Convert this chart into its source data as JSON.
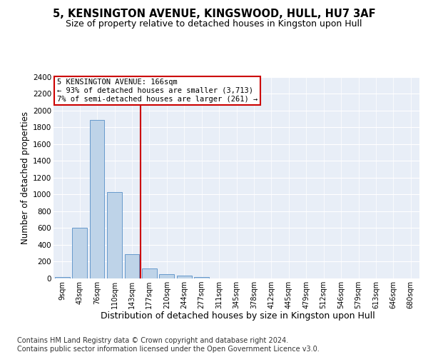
{
  "title": "5, KENSINGTON AVENUE, KINGSWOOD, HULL, HU7 3AF",
  "subtitle": "Size of property relative to detached houses in Kingston upon Hull",
  "xlabel": "Distribution of detached houses by size in Kingston upon Hull",
  "ylabel": "Number of detached properties",
  "categories": [
    "9sqm",
    "43sqm",
    "76sqm",
    "110sqm",
    "143sqm",
    "177sqm",
    "210sqm",
    "244sqm",
    "277sqm",
    "311sqm",
    "345sqm",
    "378sqm",
    "412sqm",
    "445sqm",
    "479sqm",
    "512sqm",
    "546sqm",
    "579sqm",
    "613sqm",
    "646sqm",
    "680sqm"
  ],
  "values": [
    15,
    600,
    1890,
    1030,
    290,
    115,
    50,
    30,
    20,
    0,
    0,
    0,
    0,
    0,
    0,
    0,
    0,
    0,
    0,
    0,
    0
  ],
  "bar_color": "#bed3e8",
  "bar_edge_color": "#6699cc",
  "vline_color": "#cc0000",
  "annotation_text": "5 KENSINGTON AVENUE: 166sqm\n← 93% of detached houses are smaller (3,713)\n7% of semi-detached houses are larger (261) →",
  "annotation_box_color": "#ffffff",
  "annotation_box_edgecolor": "#cc0000",
  "ylim": [
    0,
    2400
  ],
  "yticks": [
    0,
    200,
    400,
    600,
    800,
    1000,
    1200,
    1400,
    1600,
    1800,
    2000,
    2200,
    2400
  ],
  "footer": "Contains HM Land Registry data © Crown copyright and database right 2024.\nContains public sector information licensed under the Open Government Licence v3.0.",
  "plot_background_color": "#e8eef7",
  "title_fontsize": 10.5,
  "subtitle_fontsize": 9,
  "ylabel_fontsize": 8.5,
  "xlabel_fontsize": 9,
  "tick_fontsize": 7.5,
  "annotation_fontsize": 7.5,
  "footer_fontsize": 7
}
